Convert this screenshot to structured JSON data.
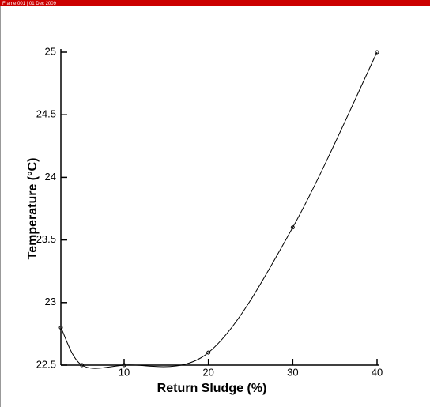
{
  "header": {
    "text": "Frame 001 | 01 Dec 2009 |"
  },
  "chart_data": {
    "type": "line",
    "x_label": "Return Sludge (%)",
    "y_label": "Temperature (°C)",
    "x": [
      2.5,
      5,
      10,
      20,
      30,
      40
    ],
    "series": [
      {
        "color": "#000000",
        "values": [
          22.8,
          22.5,
          22.5,
          22.6,
          23.6,
          25
        ]
      }
    ],
    "smooth": true,
    "xlim": [
      2.5,
      40
    ],
    "xticks": [
      10,
      20,
      30,
      40
    ],
    "ylim": [
      22.5,
      25
    ],
    "yticks": [
      22.5,
      23,
      23.5,
      24,
      24.5,
      25
    ]
  }
}
